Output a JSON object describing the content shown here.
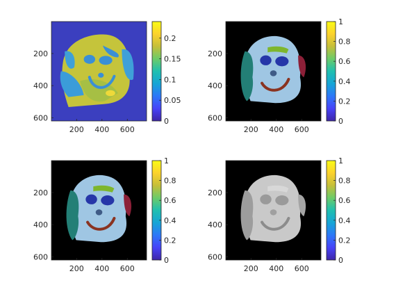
{
  "figure": {
    "colormap": "parula",
    "colormap_stops": [
      "#3e26a8",
      "#4743f8",
      "#2d78f8",
      "#16a5d6",
      "#20bfb0",
      "#6ccb69",
      "#c5bf3a",
      "#fcd22d",
      "#f9fb15"
    ]
  },
  "chart_data": [
    {
      "type": "heatmap",
      "title": "",
      "xlabel": "",
      "ylabel": "",
      "x_ticks": [
        "200",
        "400",
        "600"
      ],
      "y_ticks": [
        "200",
        "400",
        "600"
      ],
      "xlim": [
        1,
        752
      ],
      "ylim": [
        1,
        620
      ],
      "image": "scalar map, teddy-bear face",
      "colorbar": {
        "range": [
          0,
          0.24
        ],
        "ticks": [
          "0",
          "0.05",
          "0.1",
          "0.15",
          "0.2"
        ]
      },
      "colors": {
        "background": "#3b3fbf",
        "head": "#c5c43b",
        "face_patch": "#a6bf44",
        "features": "#3a8fd6",
        "ears": "#3fa0d8",
        "arms": "#3b9cd9",
        "highlight": "#eed939"
      }
    },
    {
      "type": "heatmap",
      "title": "",
      "xlabel": "",
      "ylabel": "",
      "x_ticks": [
        "200",
        "400",
        "600"
      ],
      "y_ticks": [
        "200",
        "400",
        "600"
      ],
      "xlim": [
        1,
        752
      ],
      "ylim": [
        1,
        620
      ],
      "image": "RGB rendering, teddy-bear face",
      "colorbar": {
        "range": [
          0,
          1
        ],
        "ticks": [
          "0",
          "0.2",
          "0.4",
          "0.6",
          "0.8",
          "1"
        ]
      },
      "colors": {
        "background": "#000000",
        "head": "#9fc6e3",
        "eyes": "#2636a8",
        "mouth": "#8a3320",
        "ear_left": "#237f76",
        "ear_right": "#8c2038",
        "band": "#7eb62d",
        "nose": "#3f5b86"
      }
    },
    {
      "type": "heatmap",
      "title": "",
      "xlabel": "",
      "ylabel": "",
      "x_ticks": [
        "200",
        "400",
        "600"
      ],
      "y_ticks": [
        "200",
        "400",
        "600"
      ],
      "xlim": [
        1,
        752
      ],
      "ylim": [
        1,
        620
      ],
      "image": "RGB rendering, teddy-bear face",
      "colorbar": {
        "range": [
          0,
          1
        ],
        "ticks": [
          "0",
          "0.2",
          "0.4",
          "0.6",
          "0.8",
          "1"
        ]
      },
      "colors": {
        "background": "#000000",
        "head": "#9fc6e3",
        "eyes": "#2636a8",
        "mouth": "#8a3320",
        "ear_left": "#237f76",
        "ear_right": "#8c2038",
        "band": "#7eb62d",
        "nose": "#3f5b86"
      }
    },
    {
      "type": "heatmap",
      "title": "",
      "xlabel": "",
      "ylabel": "",
      "x_ticks": [
        "200",
        "400",
        "600"
      ],
      "y_ticks": [
        "200",
        "400",
        "600"
      ],
      "xlim": [
        1,
        752
      ],
      "ylim": [
        1,
        620
      ],
      "image": "grayscale shaded rendering, teddy-bear face",
      "colorbar": {
        "range": [
          0,
          1
        ],
        "ticks": [
          "0",
          "0.2",
          "0.4",
          "0.6",
          "0.8",
          "1"
        ]
      },
      "colors": {
        "background": "#000000",
        "head": "#c9c9c9",
        "eyes": "#9a9a9a",
        "mouth": "#8c8c8c",
        "ear_left": "#9d9d9d",
        "ear_right": "#a5a5a5",
        "band": "#d8d8d8",
        "nose": "#a0a0a0"
      }
    }
  ]
}
